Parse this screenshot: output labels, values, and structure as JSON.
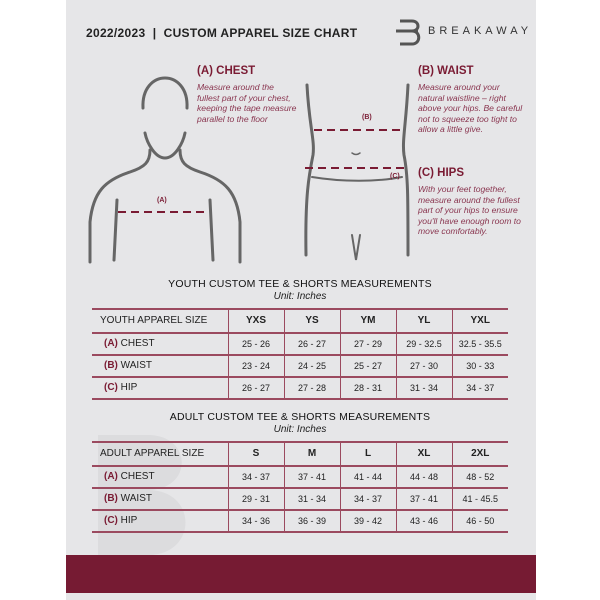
{
  "header": {
    "title": "2022/2023  |  CUSTOM APPAREL SIZE CHART",
    "brand": "BREAKAWAY"
  },
  "chest": {
    "heading": "(A) CHEST",
    "desc": "Measure around the fullest part of your chest, keeping the tape measure parallel to the floor",
    "marker": "(A)"
  },
  "waist": {
    "heading": "(B) WAIST",
    "desc": "Measure around your natural waistline – right above your hips. Be careful not to squeeze too tight to allow a little give.",
    "marker": "(B)"
  },
  "hips": {
    "heading": "(C) HIPS",
    "desc": "With your feet together, measure around the fullest part of your hips to ensure you'll have enough room to move comfortably.",
    "marker": "(C)"
  },
  "youth": {
    "title": "YOUTH CUSTOM TEE & SHORTS MEASUREMENTS",
    "unit": "Unit: Inches",
    "header": "YOUTH APPAREL SIZE",
    "sizes": [
      "YXS",
      "YS",
      "YM",
      "YL",
      "YXL"
    ],
    "rows": [
      {
        "code": "(A)",
        "name": "CHEST",
        "values": [
          "25 - 26",
          "26 - 27",
          "27 - 29",
          "29 - 32.5",
          "32.5 - 35.5"
        ]
      },
      {
        "code": "(B)",
        "name": "WAIST",
        "values": [
          "23 - 24",
          "24 - 25",
          "25 - 27",
          "27 - 30",
          "30 - 33"
        ]
      },
      {
        "code": "(C)",
        "name": "HIP",
        "values": [
          "26 - 27",
          "27 - 28",
          "28 - 31",
          "31 - 34",
          "34 - 37"
        ]
      }
    ]
  },
  "adult": {
    "title": "ADULT CUSTOM TEE & SHORTS MEASUREMENTS",
    "unit": "Unit: Inches",
    "header": "ADULT APPAREL SIZE",
    "sizes": [
      "S",
      "M",
      "L",
      "XL",
      "2XL"
    ],
    "rows": [
      {
        "code": "(A)",
        "name": "CHEST",
        "values": [
          "34 - 37",
          "37 - 41",
          "41 - 44",
          "44 - 48",
          "48 - 52"
        ]
      },
      {
        "code": "(B)",
        "name": "WAIST",
        "values": [
          "29 - 31",
          "31 - 34",
          "34 - 37",
          "37 - 41",
          "41 - 45.5"
        ]
      },
      {
        "code": "(C)",
        "name": "HIP",
        "values": [
          "34 - 36",
          "36 - 39",
          "39 - 42",
          "43 - 46",
          "46 - 50"
        ]
      }
    ]
  },
  "colors": {
    "accent": "#761b33",
    "panel": "#e6e6e8"
  }
}
